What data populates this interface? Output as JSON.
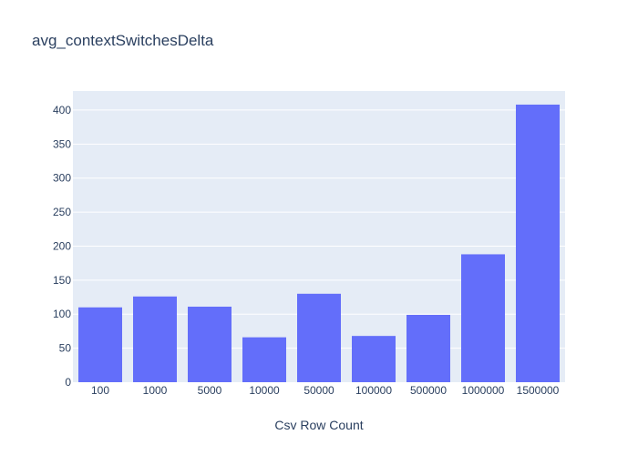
{
  "chart_data": {
    "type": "bar",
    "title": "avg_contextSwitchesDelta",
    "xlabel": "Csv Row Count",
    "ylabel": "",
    "categories": [
      "100",
      "1000",
      "5000",
      "10000",
      "50000",
      "100000",
      "500000",
      "1000000",
      "1500000"
    ],
    "values": [
      110,
      126,
      111,
      66,
      130,
      68,
      99,
      188,
      408
    ],
    "ylim": [
      0,
      428
    ],
    "yticks": [
      "0",
      "50",
      "100",
      "150",
      "200",
      "250",
      "300",
      "350",
      "400"
    ],
    "grid": true,
    "legend": "none",
    "colors": {
      "bar": "#636efa",
      "plot_bg": "#e5ecf6",
      "grid": "#ffffff",
      "text": "#2a3f5f"
    }
  }
}
